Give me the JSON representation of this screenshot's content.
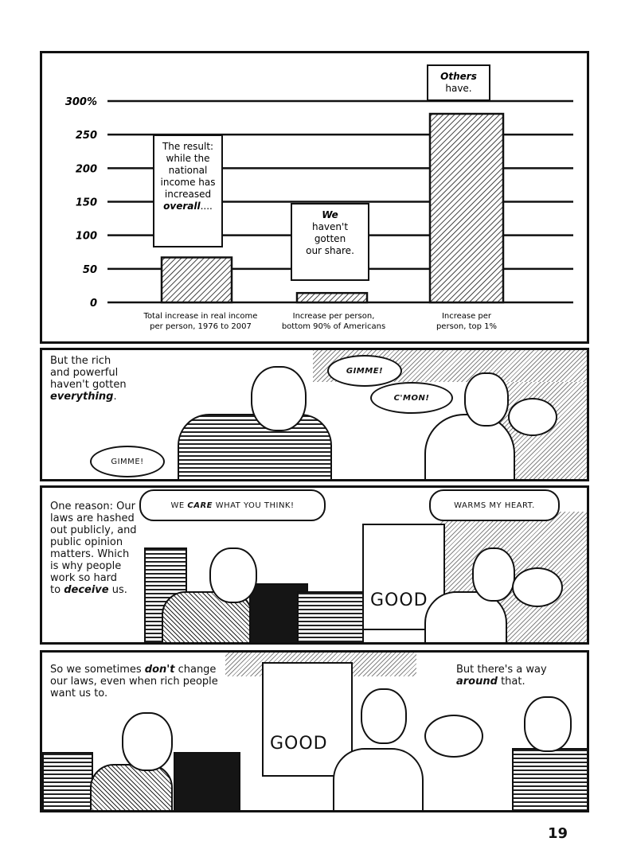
{
  "chart_data": {
    "type": "bar",
    "categories": [
      "Total increase in real income per person, 1976 to 2007",
      "Increase per person, bottom 90% of Americans",
      "Increase per person, top 1%"
    ],
    "category_lines": [
      [
        "Total increase in real income",
        "per person, 1976 to 2007"
      ],
      [
        "Increase per person,",
        "bottom 90% of Americans"
      ],
      [
        "Increase per",
        "person, top 1%"
      ]
    ],
    "values": [
      67,
      14,
      281
    ],
    "yticks": [
      "0",
      "50",
      "100",
      "150",
      "200",
      "250",
      "300%"
    ],
    "ytick_values": [
      0,
      50,
      100,
      150,
      200,
      250,
      300
    ],
    "ylim": [
      0,
      300
    ],
    "grid": true,
    "bar_fill": "diagonal hatch",
    "annotations": [
      {
        "lines": [
          "The result:",
          "while the",
          "national",
          "income has",
          "increased"
        ],
        "emph": "overall",
        "tail": "...."
      },
      {
        "emph": "We",
        "lines": [
          "haven't",
          "gotten",
          "our share."
        ]
      },
      {
        "emph": "Others",
        "lines": [
          "have."
        ]
      }
    ]
  },
  "panel2": {
    "caption": [
      "But the rich",
      "and powerful",
      "haven't gotten"
    ],
    "caption_emph": "everything",
    "caption_tail": ".",
    "bubbles": [
      "GIMME!",
      "C'MON!",
      "GIMME!"
    ]
  },
  "panel3": {
    "caption": [
      "One reason: Our",
      "laws are hashed",
      "out publicly, and",
      "public opinion",
      "matters. Which",
      "is why people",
      "work so hard",
      "to"
    ],
    "caption_emph": "deceive",
    "caption_tail": " us.",
    "bubble1_pre": "WE ",
    "bubble1_emph": "CARE",
    "bubble1_post": " WHAT YOU THINK!",
    "bubble2": "WARMS MY HEART.",
    "sign": "GOOD"
  },
  "panel4": {
    "caption_left_pre": "So we sometimes ",
    "caption_left_emph": "don't",
    "caption_left_post": " change",
    "caption_left_rest": [
      "our laws, even when rich people",
      "want us to."
    ],
    "caption_right_line1": "But there's a way",
    "caption_right_emph": "around",
    "caption_right_post": " that.",
    "sign": "GOOD"
  },
  "page_number": "19"
}
